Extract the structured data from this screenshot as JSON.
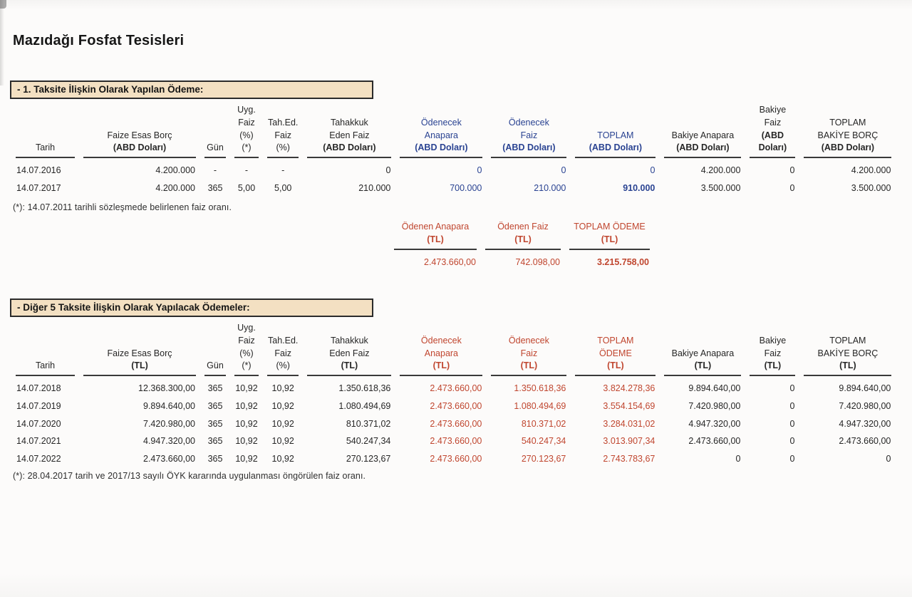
{
  "page": {
    "title": "Mazıdağı Fosfat Tesisleri"
  },
  "colors": {
    "accent_blue": "#2a4392",
    "accent_red": "#c0462f",
    "heading_bg": "#f3e0c2",
    "rule_line": "#3a3a3a"
  },
  "section1": {
    "heading": "- 1. Taksite İlişkin Olarak Yapılan Ödeme:",
    "table": {
      "aligns": [
        "l",
        "r",
        "c",
        "c",
        "c",
        "r",
        "r",
        "r",
        "r",
        "r",
        "r",
        "r"
      ],
      "accent_cols": [
        6,
        7,
        8
      ],
      "bold_cells": [
        [
          1,
          8
        ]
      ],
      "headers": [
        {
          "lines": [
            "Tarih"
          ],
          "accent": false,
          "bold_last": false
        },
        {
          "lines": [
            "Faize Esas Borç",
            "(ABD Doları)"
          ],
          "accent": false,
          "bold_last": true
        },
        {
          "lines": [
            "Gün"
          ],
          "accent": false,
          "bold_last": false
        },
        {
          "lines": [
            "Uyg.",
            "Faiz",
            "(%) (*)"
          ],
          "accent": false,
          "bold_last": false
        },
        {
          "lines": [
            "Tah.Ed.",
            "Faiz",
            "(%)"
          ],
          "accent": false,
          "bold_last": false
        },
        {
          "lines": [
            "Tahakkuk",
            "Eden Faiz",
            "(ABD Doları)"
          ],
          "accent": false,
          "bold_last": true
        },
        {
          "lines": [
            "Ödenecek",
            "Anapara",
            "(ABD Doları)"
          ],
          "accent": true,
          "bold_last": true
        },
        {
          "lines": [
            "Ödenecek",
            "Faiz",
            "(ABD Doları)"
          ],
          "accent": true,
          "bold_last": true
        },
        {
          "lines": [
            "TOPLAM",
            "(ABD Doları)"
          ],
          "accent": true,
          "bold_last": true
        },
        {
          "lines": [
            "Bakiye Anapara",
            "(ABD Doları)"
          ],
          "accent": false,
          "bold_last": true
        },
        {
          "lines": [
            "Bakiye Faiz",
            "(ABD Doları)"
          ],
          "accent": false,
          "bold_last": true
        },
        {
          "lines": [
            "TOPLAM",
            "BAKİYE BORÇ",
            "(ABD Doları)"
          ],
          "accent": false,
          "bold_last": true
        }
      ],
      "rows": [
        [
          "14.07.2016",
          "4.200.000",
          "-",
          "-",
          "-",
          "0",
          "0",
          "0",
          "0",
          "4.200.000",
          "0",
          "4.200.000"
        ],
        [
          "14.07.2017",
          "4.200.000",
          "365",
          "5,00",
          "5,00",
          "210.000",
          "700.000",
          "210.000",
          "910.000",
          "3.500.000",
          "0",
          "3.500.000"
        ]
      ]
    },
    "footnote": "(*): 14.07.2011 tarihli sözleşmede belirlenen faiz oranı.",
    "payment_summary": {
      "aligns": [
        "r",
        "r",
        "r"
      ],
      "accent_cols": [
        0,
        1,
        2
      ],
      "bold_cells": [
        [
          0,
          2
        ]
      ],
      "headers": [
        {
          "lines": [
            "Ödenen Anapara",
            "(TL)"
          ],
          "accent": true,
          "bold_last": true
        },
        {
          "lines": [
            "Ödenen Faiz",
            "(TL)"
          ],
          "accent": true,
          "bold_last": true
        },
        {
          "lines": [
            "TOPLAM ÖDEME",
            "(TL)"
          ],
          "accent": true,
          "bold_last": true
        }
      ],
      "rows": [
        [
          "2.473.660,00",
          "742.098,00",
          "3.215.758,00"
        ]
      ]
    }
  },
  "section2": {
    "heading": "- Diğer 5 Taksite İlişkin Olarak Yapılacak Ödemeler:",
    "table": {
      "aligns": [
        "l",
        "r",
        "c",
        "c",
        "c",
        "r",
        "r",
        "r",
        "r",
        "r",
        "r",
        "r"
      ],
      "accent_cols": [
        6,
        7,
        8
      ],
      "bold_cells": [],
      "headers": [
        {
          "lines": [
            "Tarih"
          ],
          "accent": false,
          "bold_last": false
        },
        {
          "lines": [
            "Faize Esas Borç",
            "(TL)"
          ],
          "accent": false,
          "bold_last": true
        },
        {
          "lines": [
            "Gün"
          ],
          "accent": false,
          "bold_last": false
        },
        {
          "lines": [
            "Uyg.",
            "Faiz",
            "(%) (*)"
          ],
          "accent": false,
          "bold_last": false
        },
        {
          "lines": [
            "Tah.Ed.",
            "Faiz",
            "(%)"
          ],
          "accent": false,
          "bold_last": false
        },
        {
          "lines": [
            "Tahakkuk",
            "Eden Faiz",
            "(TL)"
          ],
          "accent": false,
          "bold_last": true
        },
        {
          "lines": [
            "Ödenecek",
            "Anapara",
            "(TL)"
          ],
          "accent": true,
          "bold_last": true
        },
        {
          "lines": [
            "Ödenecek",
            "Faiz",
            "(TL)"
          ],
          "accent": true,
          "bold_last": true
        },
        {
          "lines": [
            "TOPLAM",
            "ÖDEME",
            "(TL)"
          ],
          "accent": true,
          "bold_last": true
        },
        {
          "lines": [
            "Bakiye Anapara",
            "(TL)"
          ],
          "accent": false,
          "bold_last": true
        },
        {
          "lines": [
            "Bakiye Faiz",
            "(TL)"
          ],
          "accent": false,
          "bold_last": true
        },
        {
          "lines": [
            "TOPLAM",
            "BAKİYE BORÇ",
            "(TL)"
          ],
          "accent": false,
          "bold_last": true
        }
      ],
      "rows": [
        [
          "14.07.2018",
          "12.368.300,00",
          "365",
          "10,92",
          "10,92",
          "1.350.618,36",
          "2.473.660,00",
          "1.350.618,36",
          "3.824.278,36",
          "9.894.640,00",
          "0",
          "9.894.640,00"
        ],
        [
          "14.07.2019",
          "9.894.640,00",
          "365",
          "10,92",
          "10,92",
          "1.080.494,69",
          "2.473.660,00",
          "1.080.494,69",
          "3.554.154,69",
          "7.420.980,00",
          "0",
          "7.420.980,00"
        ],
        [
          "14.07.2020",
          "7.420.980,00",
          "365",
          "10,92",
          "10,92",
          "810.371,02",
          "2.473.660,00",
          "810.371,02",
          "3.284.031,02",
          "4.947.320,00",
          "0",
          "4.947.320,00"
        ],
        [
          "14.07.2021",
          "4.947.320,00",
          "365",
          "10,92",
          "10,92",
          "540.247,34",
          "2.473.660,00",
          "540.247,34",
          "3.013.907,34",
          "2.473.660,00",
          "0",
          "2.473.660,00"
        ],
        [
          "14.07.2022",
          "2.473.660,00",
          "365",
          "10,92",
          "10,92",
          "270.123,67",
          "2.473.660,00",
          "270.123,67",
          "2.743.783,67",
          "0",
          "0",
          "0"
        ]
      ]
    },
    "footnote": "(*): 28.04.2017 tarih ve 2017/13 sayılı ÖYK kararında uygulanması öngörülen faiz oranı."
  }
}
